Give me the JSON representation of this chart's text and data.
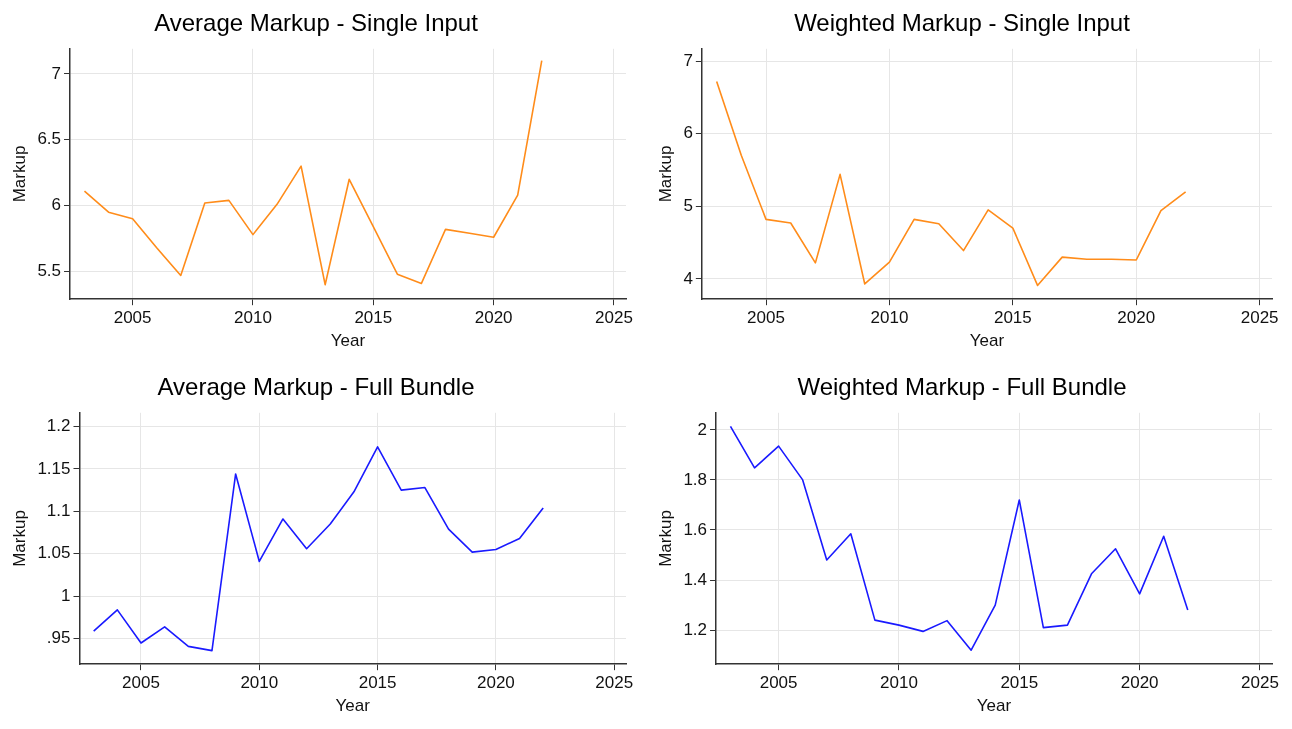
{
  "chart_data": [
    {
      "type": "line",
      "title": "Average Markup - Single Input",
      "xlabel": "Year",
      "ylabel": "Markup",
      "x": [
        2003,
        2004,
        2005,
        2006,
        2007,
        2008,
        2009,
        2010,
        2011,
        2012,
        2013,
        2014,
        2015,
        2016,
        2017,
        2018,
        2019,
        2020,
        2021,
        2022
      ],
      "series": [
        {
          "color": "#ff8c1a",
          "values": [
            6.11,
            5.95,
            5.9,
            5.68,
            5.47,
            6.02,
            6.04,
            5.78,
            6.01,
            6.3,
            5.4,
            6.2,
            5.84,
            5.48,
            5.41,
            5.82,
            5.79,
            5.76,
            6.08,
            7.1
          ]
        }
      ],
      "xlim": [
        2002.4,
        2025.5
      ],
      "xticks": [
        2005,
        2010,
        2015,
        2020,
        2025
      ],
      "ylim": [
        5.29,
        7.19
      ],
      "yticks": [
        5.5,
        6,
        6.5,
        7
      ],
      "grid": true,
      "legend": false,
      "marker": "none",
      "line_style": "solid"
    },
    {
      "type": "line",
      "title": "Weighted Markup - Single Input",
      "xlabel": "Year",
      "ylabel": "Markup",
      "x": [
        2003,
        2004,
        2005,
        2006,
        2007,
        2008,
        2009,
        2010,
        2011,
        2012,
        2013,
        2014,
        2015,
        2016,
        2017,
        2018,
        2019,
        2020,
        2021,
        2022
      ],
      "series": [
        {
          "color": "#ff8c1a",
          "values": [
            6.72,
            5.7,
            4.82,
            4.77,
            4.22,
            5.44,
            3.93,
            4.23,
            4.82,
            4.76,
            4.39,
            4.95,
            4.7,
            3.91,
            4.3,
            4.27,
            4.27,
            4.26,
            4.94,
            5.2
          ]
        }
      ],
      "xlim": [
        2002.4,
        2025.5
      ],
      "xticks": [
        2005,
        2010,
        2015,
        2020,
        2025
      ],
      "ylim": [
        3.72,
        7.17
      ],
      "yticks": [
        4,
        5,
        6,
        7
      ],
      "grid": true,
      "legend": false,
      "marker": "none",
      "line_style": "solid"
    },
    {
      "type": "line",
      "title": "Average Markup - Full Bundle",
      "xlabel": "Year",
      "ylabel": "Markup",
      "x": [
        2003,
        2004,
        2005,
        2006,
        2007,
        2008,
        2009,
        2010,
        2011,
        2012,
        2013,
        2014,
        2015,
        2016,
        2017,
        2018,
        2019,
        2020,
        2021,
        2022
      ],
      "series": [
        {
          "color": "#1a1aff",
          "values": [
            0.959,
            0.984,
            0.945,
            0.964,
            0.941,
            0.936,
            1.144,
            1.041,
            1.091,
            1.056,
            1.085,
            1.123,
            1.176,
            1.125,
            1.128,
            1.079,
            1.052,
            1.055,
            1.068,
            1.104
          ]
        }
      ],
      "xlim": [
        2002.4,
        2025.5
      ],
      "xticks": [
        2005,
        2010,
        2015,
        2020,
        2025
      ],
      "ylim": [
        0.92,
        1.216
      ],
      "yticks": [
        {
          "value": 0.95,
          "label": ".95"
        },
        1,
        1.05,
        1.1,
        1.15,
        1.2
      ],
      "grid": true,
      "legend": false,
      "marker": "none",
      "line_style": "solid"
    },
    {
      "type": "line",
      "title": "Weighted Markup - Full Bundle",
      "xlabel": "Year",
      "ylabel": "Markup",
      "x": [
        2003,
        2004,
        2005,
        2006,
        2007,
        2008,
        2009,
        2010,
        2011,
        2012,
        2013,
        2014,
        2015,
        2016,
        2017,
        2018,
        2019,
        2020,
        2021,
        2022
      ],
      "series": [
        {
          "color": "#1a1aff",
          "values": [
            2.014,
            1.848,
            1.935,
            1.8,
            1.48,
            1.585,
            1.24,
            1.22,
            1.195,
            1.238,
            1.12,
            1.3,
            1.72,
            1.21,
            1.22,
            1.425,
            1.525,
            1.345,
            1.575,
            1.28
          ]
        }
      ],
      "xlim": [
        2002.4,
        2025.5
      ],
      "xticks": [
        2005,
        2010,
        2015,
        2020,
        2025
      ],
      "ylim": [
        1.064,
        2.068
      ],
      "yticks": [
        1.2,
        1.4,
        1.6,
        1.8,
        2
      ],
      "grid": true,
      "legend": false,
      "marker": "none",
      "line_style": "solid"
    }
  ]
}
